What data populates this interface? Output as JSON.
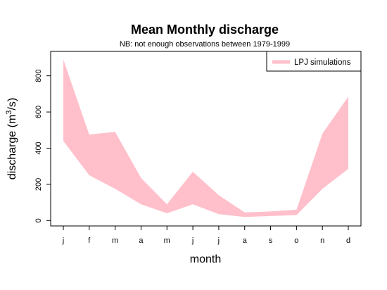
{
  "chart_data": {
    "type": "area",
    "title": "Mean Monthly discharge",
    "subtitle": "NB: not enough observations between 1979-1999",
    "xlabel": "month",
    "ylabel": "discharge (m",
    "ylabel_sup": "3",
    "ylabel_suffix": "/s)",
    "categories": [
      "j",
      "f",
      "m",
      "a",
      "m",
      "j",
      "j",
      "a",
      "s",
      "o",
      "n",
      "d"
    ],
    "yticks": [
      0,
      200,
      400,
      600,
      800
    ],
    "ylim": [
      -30,
      935
    ],
    "grid": false,
    "legend_position": "top-right",
    "series": [
      {
        "name": "LPJ simulations",
        "color": "#ffc0cb",
        "upper": [
          890,
          475,
          490,
          235,
          90,
          270,
          140,
          45,
          50,
          60,
          480,
          685
        ],
        "lower": [
          440,
          250,
          175,
          90,
          40,
          90,
          35,
          20,
          25,
          30,
          175,
          285
        ]
      }
    ]
  }
}
